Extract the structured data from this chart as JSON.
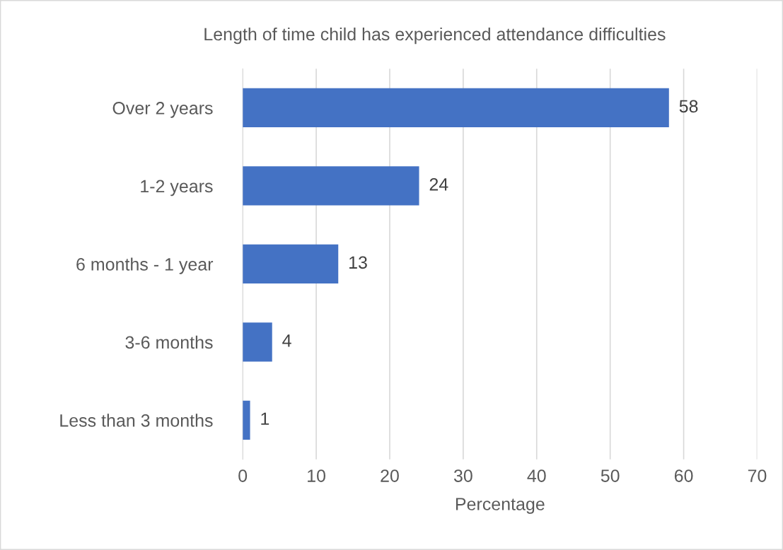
{
  "chart_data": {
    "type": "bar",
    "orientation": "horizontal",
    "title": "Length of time child has experienced attendance difficulties",
    "categories": [
      "Over 2 years",
      "1-2 years",
      "6 months - 1 year",
      "3-6 months",
      "Less than 3 months"
    ],
    "values": [
      58,
      24,
      13,
      4,
      1
    ],
    "color": "#4472c4",
    "xlim": [
      0,
      70
    ],
    "xticks": [
      0,
      10,
      20,
      30,
      40,
      50,
      60,
      70
    ],
    "xlabel": "Percentage",
    "grid": "x",
    "data_labels": true
  }
}
